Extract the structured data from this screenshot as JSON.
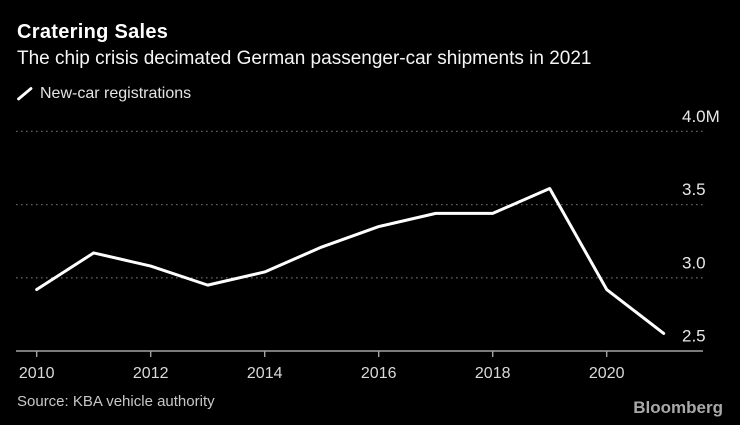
{
  "header": {
    "title": "Cratering Sales",
    "subtitle": "The chip crisis decimated German passenger-car shipments in 2021"
  },
  "legend": {
    "label": "New-car registrations"
  },
  "footer": {
    "source": "Source: KBA vehicle authority",
    "brand": "Bloomberg"
  },
  "colors": {
    "background": "#000000",
    "line": "#ffffff",
    "grid": "#5f5f5f",
    "axis": "#a3a3a3",
    "x_tick_label": "#d9d9d9",
    "y_tick_label": "#e8e8e8",
    "title": "#ffffff",
    "source": "#c8c8c8",
    "brand": "#a9a9a9"
  },
  "chart_data": {
    "type": "line",
    "title": "Cratering Sales",
    "subtitle": "The chip crisis decimated German passenger-car shipments in 2021",
    "unit": "M",
    "x": [
      2010,
      2011,
      2012,
      2013,
      2014,
      2015,
      2016,
      2017,
      2018,
      2019,
      2020,
      2021
    ],
    "series": [
      {
        "name": "New-car registrations",
        "values": [
          2.92,
          3.17,
          3.08,
          2.95,
          3.04,
          3.21,
          3.35,
          3.44,
          3.44,
          3.61,
          2.92,
          2.62
        ]
      }
    ],
    "y_ticks": [
      {
        "value": 4.0,
        "label": "4.0M"
      },
      {
        "value": 3.5,
        "label": "3.5"
      },
      {
        "value": 3.0,
        "label": "3.0"
      },
      {
        "value": 2.5,
        "label": "2.5"
      }
    ],
    "x_ticks": [
      2010,
      2012,
      2014,
      2016,
      2018,
      2020
    ],
    "ylim": [
      2.5,
      4.05
    ],
    "xlim": [
      2010,
      2021
    ],
    "grid": "horizontal-dotted",
    "legend_position": "top-left"
  }
}
